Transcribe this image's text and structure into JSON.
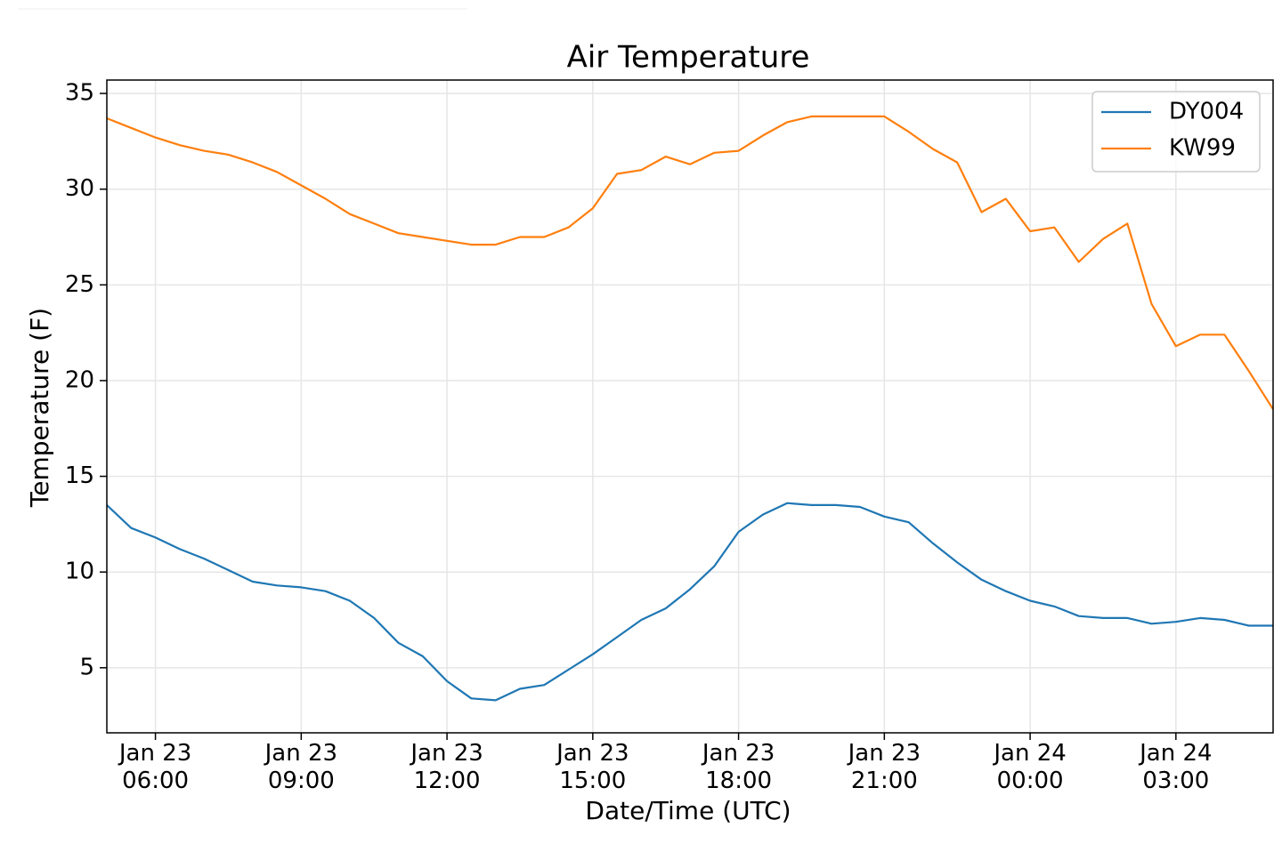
{
  "chart_data": {
    "type": "line",
    "title": "Air Temperature",
    "x_label": "Date/Time (UTC)",
    "y_label": "Temperature (F)",
    "x": [
      "Jan 23 05:00",
      "Jan 23 05:30",
      "Jan 23 06:00",
      "Jan 23 06:30",
      "Jan 23 07:00",
      "Jan 23 07:30",
      "Jan 23 08:00",
      "Jan 23 08:30",
      "Jan 23 09:00",
      "Jan 23 09:30",
      "Jan 23 10:00",
      "Jan 23 10:30",
      "Jan 23 11:00",
      "Jan 23 11:30",
      "Jan 23 12:00",
      "Jan 23 12:30",
      "Jan 23 13:00",
      "Jan 23 13:30",
      "Jan 23 14:00",
      "Jan 23 14:30",
      "Jan 23 15:00",
      "Jan 23 15:30",
      "Jan 23 16:00",
      "Jan 23 16:30",
      "Jan 23 17:00",
      "Jan 23 17:30",
      "Jan 23 18:00",
      "Jan 23 18:30",
      "Jan 23 19:00",
      "Jan 23 19:30",
      "Jan 23 20:00",
      "Jan 23 20:30",
      "Jan 23 21:00",
      "Jan 23 21:30",
      "Jan 23 22:00",
      "Jan 23 22:30",
      "Jan 23 23:00",
      "Jan 23 23:30",
      "Jan 24 00:00",
      "Jan 24 00:30",
      "Jan 24 01:00",
      "Jan 24 01:30",
      "Jan 24 02:00",
      "Jan 24 02:30",
      "Jan 24 03:00",
      "Jan 24 03:30",
      "Jan 24 04:00",
      "Jan 24 04:30",
      "Jan 24 05:00"
    ],
    "series": [
      {
        "name": "DY004",
        "color": "#1f77b4",
        "values": [
          13.5,
          12.3,
          11.8,
          11.2,
          10.7,
          10.1,
          9.5,
          9.3,
          9.2,
          9.0,
          8.5,
          7.6,
          6.3,
          5.6,
          4.3,
          3.4,
          3.3,
          3.9,
          4.1,
          4.9,
          5.7,
          6.6,
          7.5,
          8.1,
          9.1,
          10.3,
          12.1,
          13.0,
          13.6,
          13.5,
          13.5,
          13.4,
          12.9,
          12.6,
          11.5,
          10.5,
          9.6,
          9.0,
          8.5,
          8.2,
          7.7,
          7.6,
          7.6,
          7.3,
          7.4,
          7.6,
          7.5,
          7.2,
          7.2
        ]
      },
      {
        "name": "KW99",
        "color": "#ff7f0e",
        "values": [
          33.7,
          33.2,
          32.7,
          32.3,
          32.0,
          31.8,
          31.4,
          30.9,
          30.2,
          29.5,
          28.7,
          28.2,
          27.7,
          27.5,
          27.3,
          27.1,
          27.1,
          27.5,
          27.5,
          28.0,
          29.0,
          30.8,
          31.0,
          31.7,
          31.3,
          31.9,
          32.0,
          32.8,
          33.5,
          33.8,
          33.8,
          33.8,
          33.8,
          33.0,
          32.1,
          31.4,
          28.8,
          29.5,
          27.8,
          28.0,
          26.2,
          27.4,
          28.2,
          24.0,
          21.8,
          22.4,
          22.4,
          20.5,
          18.5
        ]
      }
    ],
    "xlim": [
      "Jan 23 05:00",
      "Jan 24 05:00"
    ],
    "xticks": [
      "Jan 23 06:00",
      "Jan 23 09:00",
      "Jan 23 12:00",
      "Jan 23 15:00",
      "Jan 23 18:00",
      "Jan 23 21:00",
      "Jan 24 00:00",
      "Jan 24 03:00"
    ],
    "ylim": [
      1.6,
      35.7
    ],
    "yticks": [
      5,
      10,
      15,
      20,
      25,
      30,
      35
    ],
    "grid": true,
    "legend": "upper right"
  }
}
